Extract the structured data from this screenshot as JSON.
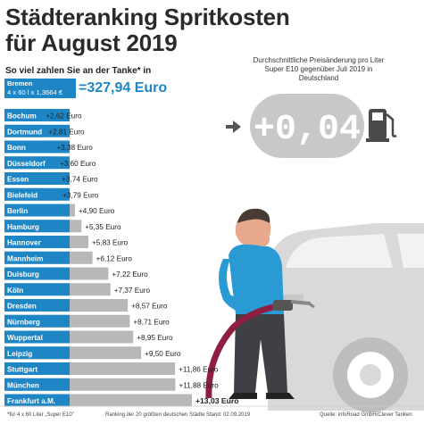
{
  "title": {
    "line1": "Städteranking Spritkosten",
    "line2": "für August 2019"
  },
  "subtitle": "So viel zahlen Sie an der Tanke* in",
  "bremen": {
    "city": "Bremen",
    "formula": "4 x 60 l x 1,3664 €",
    "total": "=327,94 Euro"
  },
  "info": {
    "text": "Durchschnittliche Preisänderung pro Liter Super E10 gegenüber Juli 2019 in Deutschland",
    "display": "+0,04"
  },
  "colors": {
    "blue": "#1f86c6",
    "bar": "#b8b8b8",
    "display": "#c8c8c8",
    "car": "#d7d7d7"
  },
  "chart_data": {
    "type": "bar",
    "orientation": "horizontal",
    "categories": [
      "Bochum",
      "Dortmund",
      "Bonn",
      "Düsseldorf",
      "Essen",
      "Bielefeld",
      "Berlin",
      "Hamburg",
      "Hannover",
      "Mannheim",
      "Duisburg",
      "Köln",
      "Dresden",
      "Nürnberg",
      "Wuppertal",
      "Leipzig",
      "Stuttgart",
      "München",
      "Frankfurt a.M."
    ],
    "values": [
      2.62,
      2.81,
      3.38,
      3.6,
      3.74,
      3.79,
      4.9,
      5.35,
      5.83,
      6.12,
      7.22,
      7.37,
      8.57,
      8.71,
      8.95,
      9.5,
      11.86,
      11.88,
      13.03
    ],
    "labels": [
      "+2,62 Euro",
      "+2,81 Euro",
      "+3,38 Euro",
      "+3,60 Euro",
      "+3,74 Euro",
      "+3,79 Euro",
      "+4,90 Euro",
      "+5,35 Euro",
      "+5,83 Euro",
      "+6,12 Euro",
      "+7,22 Euro",
      "+7,37 Euro",
      "+8,57 Euro",
      "+8,71 Euro",
      "+8,95 Euro",
      "+9,50 Euro",
      "+11,86 Euro",
      "+11,88 Euro",
      "+13,03 Euro"
    ],
    "highlight_index": 18
  },
  "footer": {
    "note": "*für 4 x 60 Liter „Super E10\"",
    "ranking": "Ranking der 20 größten deutschen Städte",
    "date": "Stand: 02.09.2019",
    "source": "Quelle: infoRoad GmbH/Clever Tanken"
  }
}
